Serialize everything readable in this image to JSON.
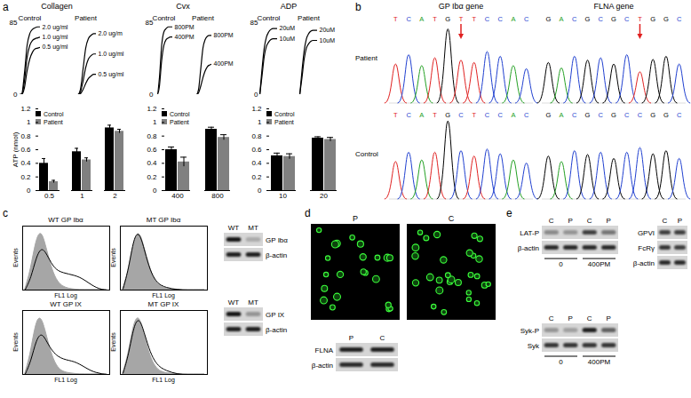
{
  "panel_labels": [
    "a",
    "b",
    "c",
    "d",
    "e"
  ],
  "chart_data": [
    {
      "type": "line",
      "title": "Collagen",
      "x": [
        0,
        1,
        2,
        3,
        4,
        5,
        6,
        7,
        8
      ],
      "xlim": [
        0,
        8
      ],
      "ylim": [
        0,
        85
      ],
      "yticks": [
        0,
        85
      ],
      "tick_labels": "y",
      "groups": [
        {
          "name": "Control",
          "series": [
            {
              "name": "2.0 ug/ml",
              "color": "#000000",
              "values": [
                0,
                1,
                25,
                58,
                72,
                77,
                79,
                80,
                80
              ]
            },
            {
              "name": "1.0 ug/ml",
              "color": "#000000",
              "values": [
                0,
                0,
                16,
                44,
                58,
                64,
                66,
                67,
                68
              ]
            },
            {
              "name": "0.5 ug/ml",
              "color": "#000000",
              "values": [
                0,
                0,
                8,
                28,
                42,
                50,
                54,
                55,
                56
              ]
            }
          ]
        },
        {
          "name": "Patient",
          "series": [
            {
              "name": "2.0 ug/m",
              "color": "#000000",
              "values": [
                0,
                0,
                6,
                30,
                55,
                66,
                70,
                72,
                72
              ]
            },
            {
              "name": "1.0 ug/ml",
              "color": "#000000",
              "values": [
                0,
                0,
                3,
                16,
                32,
                42,
                46,
                48,
                48
              ]
            },
            {
              "name": "0.5 ug/ml",
              "color": "#000000",
              "values": [
                0,
                0,
                1,
                6,
                13,
                19,
                22,
                24,
                24
              ]
            }
          ]
        }
      ]
    },
    {
      "type": "line",
      "title": "Cvx",
      "x": [
        0,
        1,
        2,
        3,
        4,
        5,
        6,
        7,
        8
      ],
      "xlim": [
        0,
        8
      ],
      "ylim": [
        0,
        85
      ],
      "yticks": [
        0,
        85
      ],
      "tick_labels": "y",
      "groups": [
        {
          "name": "Control",
          "series": [
            {
              "name": "800PM",
              "color": "#000000",
              "values": [
                0,
                0,
                20,
                58,
                74,
                78,
                80,
                80,
                80
              ]
            },
            {
              "name": "400PM",
              "color": "#000000",
              "values": [
                0,
                0,
                10,
                40,
                58,
                65,
                67,
                68,
                68
              ]
            }
          ]
        },
        {
          "name": "Patient",
          "series": [
            {
              "name": "800PM",
              "color": "#000000",
              "values": [
                0,
                0,
                6,
                30,
                55,
                65,
                69,
                70,
                70
              ]
            },
            {
              "name": "400PM",
              "color": "#000000",
              "values": [
                0,
                0,
                2,
                10,
                20,
                28,
                33,
                35,
                36
              ]
            }
          ]
        }
      ]
    },
    {
      "type": "line",
      "title": "ADP",
      "x": [
        0,
        1,
        2,
        3,
        4,
        5,
        6,
        7,
        8
      ],
      "xlim": [
        0,
        8
      ],
      "ylim": [
        0,
        85
      ],
      "yticks": [
        0,
        85
      ],
      "tick_labels": "y",
      "groups": [
        {
          "name": "Control",
          "series": [
            {
              "name": "20uM",
              "color": "#000000",
              "values": [
                0,
                30,
                55,
                68,
                74,
                77,
                78,
                78,
                78
              ]
            },
            {
              "name": "10uM",
              "color": "#000000",
              "values": [
                0,
                22,
                45,
                57,
                62,
                65,
                66,
                66,
                66
              ]
            }
          ]
        },
        {
          "name": "Patient",
          "series": [
            {
              "name": "20uM",
              "color": "#000000",
              "values": [
                0,
                28,
                52,
                66,
                72,
                75,
                76,
                76,
                76
              ]
            },
            {
              "name": "10uM",
              "color": "#000000",
              "values": [
                0,
                20,
                42,
                55,
                60,
                63,
                64,
                64,
                64
              ]
            }
          ]
        }
      ]
    },
    {
      "type": "bar",
      "categories": [
        "0.5",
        "1",
        "2"
      ],
      "ylabel": "ATP (nmol)",
      "ylim": [
        0,
        1.2
      ],
      "yticks": [
        0,
        0.2,
        0.4,
        0.6,
        0.8,
        1,
        1.2
      ],
      "legend": "top-left",
      "series": [
        {
          "name": "Control",
          "color": "#000000",
          "values": [
            0.4,
            0.57,
            0.92
          ],
          "errors": [
            0.07,
            0.05,
            0.04
          ]
        },
        {
          "name": "Patient",
          "color": "#808080",
          "values": [
            0.13,
            0.45,
            0.87
          ],
          "errors": [
            0.02,
            0.03,
            0.03
          ]
        }
      ]
    },
    {
      "type": "bar",
      "categories": [
        "400",
        "800"
      ],
      "ylim": [
        0,
        1.2
      ],
      "yticks": [
        0,
        0.2,
        0.4,
        0.6,
        0.8,
        1,
        1.2
      ],
      "legend": "top-left",
      "series": [
        {
          "name": "Control",
          "color": "#000000",
          "values": [
            0.6,
            0.9
          ],
          "errors": [
            0.04,
            0.03
          ]
        },
        {
          "name": "Patient",
          "color": "#808080",
          "values": [
            0.42,
            0.78
          ],
          "errors": [
            0.07,
            0.04
          ]
        }
      ]
    },
    {
      "type": "bar",
      "categories": [
        "10",
        "20"
      ],
      "ylim": [
        0,
        1.2
      ],
      "yticks": [
        0,
        0.2,
        0.4,
        0.6,
        0.8,
        1,
        1.2
      ],
      "legend": "top-left",
      "series": [
        {
          "name": "Control",
          "color": "#000000",
          "values": [
            0.51,
            0.77
          ],
          "errors": [
            0.04,
            0.02
          ]
        },
        {
          "name": "Patient",
          "color": "#808080",
          "values": [
            0.5,
            0.75
          ],
          "errors": [
            0.04,
            0.03
          ]
        }
      ]
    },
    {
      "type": "histogram",
      "title": "WT GP Ibα",
      "xlabel": "FL1 Log",
      "ylabel": "Events",
      "bins": [
        0,
        1,
        2,
        3,
        4,
        5,
        6,
        7,
        8,
        9,
        10,
        11,
        12,
        13,
        14,
        15,
        16
      ],
      "xlim": [
        0,
        16
      ],
      "ylim": [
        0,
        100
      ],
      "xticks": [],
      "yticks": [],
      "tick_labels": false,
      "series": [
        {
          "type": "area",
          "color": "#a6a6a6",
          "values": [
            2,
            30,
            80,
            95,
            62,
            30,
            12,
            5,
            2,
            1,
            0,
            0,
            0,
            0,
            0,
            0
          ]
        },
        {
          "type": "line",
          "color": "#000000",
          "values": [
            1,
            18,
            52,
            68,
            55,
            38,
            30,
            27,
            25,
            23,
            20,
            15,
            9,
            4,
            1,
            0
          ]
        }
      ]
    },
    {
      "type": "histogram",
      "title": "MT GP Ibα",
      "xlabel": "FL1 Log",
      "ylabel": "Events",
      "bins": [
        0,
        1,
        2,
        3,
        4,
        5,
        6,
        7,
        8,
        9,
        10,
        11,
        12,
        13,
        14,
        15,
        16
      ],
      "xlim": [
        0,
        16
      ],
      "ylim": [
        0,
        100
      ],
      "xticks": [],
      "yticks": [],
      "tick_labels": false,
      "series": [
        {
          "type": "area",
          "color": "#a6a6a6",
          "values": [
            2,
            28,
            78,
            95,
            64,
            32,
            13,
            5,
            2,
            1,
            0,
            0,
            0,
            0,
            0,
            0
          ]
        },
        {
          "type": "line",
          "color": "#000000",
          "values": [
            2,
            32,
            84,
            92,
            60,
            30,
            14,
            7,
            4,
            2,
            1,
            0,
            0,
            0,
            0,
            0
          ]
        }
      ]
    },
    {
      "type": "histogram",
      "title": "WT GP IX",
      "xlabel": "FL1 Log",
      "ylabel": "Events",
      "bins": [
        0,
        1,
        2,
        3,
        4,
        5,
        6,
        7,
        8,
        9,
        10,
        11,
        12,
        13,
        14,
        15,
        16
      ],
      "xlim": [
        0,
        16
      ],
      "ylim": [
        0,
        100
      ],
      "xticks": [],
      "yticks": [],
      "tick_labels": false,
      "series": [
        {
          "type": "area",
          "color": "#a6a6a6",
          "values": [
            2,
            32,
            85,
            92,
            58,
            27,
            10,
            4,
            2,
            1,
            0,
            0,
            0,
            0,
            0,
            0
          ]
        },
        {
          "type": "line",
          "color": "#000000",
          "values": [
            1,
            20,
            55,
            66,
            50,
            36,
            28,
            24,
            22,
            20,
            16,
            11,
            6,
            3,
            1,
            0
          ]
        }
      ]
    },
    {
      "type": "histogram",
      "title": "MT GP IX",
      "xlabel": "FL1 Log",
      "ylabel": "Events",
      "bins": [
        0,
        1,
        2,
        3,
        4,
        5,
        6,
        7,
        8,
        9,
        10,
        11,
        12,
        13,
        14,
        15,
        16
      ],
      "xlim": [
        0,
        16
      ],
      "ylim": [
        0,
        100
      ],
      "xticks": [],
      "yticks": [],
      "tick_labels": false,
      "series": [
        {
          "type": "area",
          "color": "#a6a6a6",
          "values": [
            2,
            30,
            82,
            94,
            60,
            28,
            11,
            4,
            2,
            1,
            0,
            0,
            0,
            0,
            0,
            0
          ]
        },
        {
          "type": "line",
          "color": "#000000",
          "values": [
            2,
            30,
            78,
            90,
            62,
            34,
            18,
            10,
            6,
            3,
            1,
            0,
            0,
            0,
            0,
            0
          ]
        }
      ]
    }
  ],
  "sequencing": {
    "genes": [
      "GP Ibα gene",
      "FLNA gene"
    ],
    "base_colors": {
      "A": "#22a022",
      "C": "#1f3fd0",
      "G": "#000000",
      "T": "#e02020"
    },
    "rows": [
      {
        "name": "Patient",
        "traces": [
          {
            "bases": "TCATGTTCCAC",
            "peaks": [
              0.5,
              0.62,
              0.48,
              0.58,
              0.95,
              0.55,
              0.52,
              0.66,
              0.6,
              0.48,
              0.44
            ],
            "mutation_index": 5
          },
          {
            "bases": "GACGCGCTGGC",
            "peaks": [
              0.52,
              0.45,
              0.6,
              0.55,
              0.58,
              0.5,
              0.62,
              0.4,
              0.56,
              0.6,
              0.5
            ],
            "mutation_index": 7
          }
        ]
      },
      {
        "name": "Control",
        "traces": [
          {
            "bases": "TCATGCTCCAC",
            "peaks": [
              0.48,
              0.6,
              0.5,
              0.6,
              1.0,
              0.62,
              0.55,
              0.64,
              0.58,
              0.5,
              0.46
            ]
          },
          {
            "bases": "GACGCGCCGGC",
            "peaks": [
              0.55,
              0.48,
              0.62,
              0.57,
              0.6,
              0.52,
              0.6,
              0.66,
              0.58,
              0.62,
              0.52
            ]
          }
        ]
      }
    ]
  },
  "microscopy": {
    "images": [
      "P",
      "C"
    ]
  },
  "blots": {
    "c": [
      {
        "lanes": [
          "WT",
          "MT"
        ],
        "rows": [
          {
            "label": "GP Ibα",
            "intensity": [
              0.9,
              0.2
            ]
          },
          {
            "label": "β-actin",
            "intensity": [
              0.85,
              0.85
            ]
          }
        ]
      },
      {
        "lanes": [
          "WT",
          "MT"
        ],
        "rows": [
          {
            "label": "GP IX",
            "intensity": [
              0.9,
              0.3
            ]
          },
          {
            "label": "β-actin",
            "intensity": [
              0.85,
              0.85
            ]
          }
        ]
      }
    ],
    "d": [
      {
        "lanes": [
          "P",
          "C"
        ],
        "rows": [
          {
            "label": "FLNA",
            "intensity": [
              0.85,
              0.85
            ]
          },
          {
            "label": "β-actin",
            "intensity": [
              0.8,
              0.8
            ]
          }
        ]
      }
    ],
    "e": [
      {
        "lanes": [
          "C",
          "P",
          "C",
          "P"
        ],
        "conditions": [
          "0",
          "400PM"
        ],
        "rows": [
          {
            "label": "LAT-P",
            "intensity": [
              0.35,
              0.3,
              0.7,
              0.45
            ]
          },
          {
            "label": "β-actin",
            "intensity": [
              0.8,
              0.8,
              0.8,
              0.8
            ]
          }
        ]
      },
      {
        "lanes": [
          "C",
          "P"
        ],
        "rows": [
          {
            "label": "GPVI",
            "intensity": [
              0.7,
              0.7
            ]
          },
          {
            "label": "FcRγ",
            "intensity": [
              0.75,
              0.7
            ]
          },
          {
            "label": "β-actin",
            "intensity": [
              0.8,
              0.8
            ]
          }
        ]
      },
      {
        "lanes": [
          "C",
          "P",
          "C",
          "P"
        ],
        "conditions": [
          "0",
          "400PM"
        ],
        "rows": [
          {
            "label": "Syk-P",
            "intensity": [
              0.3,
              0.25,
              0.85,
              0.55
            ]
          },
          {
            "label": "Syk",
            "intensity": [
              0.75,
              0.75,
              0.75,
              0.75
            ]
          }
        ]
      }
    ]
  }
}
